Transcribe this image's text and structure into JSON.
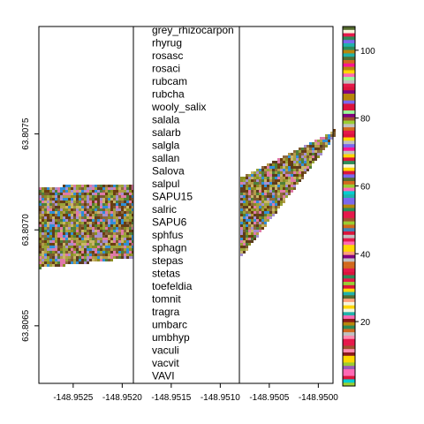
{
  "chart_data": {
    "type": "heatmap",
    "title": "",
    "xlabel": "",
    "ylabel": "",
    "x_ticks": [
      "-148.9525",
      "-148.9520",
      "-148.9515",
      "-148.9510",
      "-148.9505",
      "-148.9500"
    ],
    "y_ticks": [
      "63.8065",
      "63.8070",
      "63.8075"
    ],
    "xlim": [
      -148.95285,
      -148.94985
    ],
    "ylim": [
      63.8062,
      63.80806
    ],
    "colorbar": {
      "ticks": [
        20,
        40,
        60,
        80,
        100
      ],
      "range": [
        1,
        107
      ]
    },
    "legend_entries": [
      "grey_rhizocarpon",
      "rhyrug",
      "rosasc",
      "rosaci",
      "rubcam",
      "rubcha",
      "wooly_salix",
      "salala",
      "salarb",
      "salgla",
      "sallan",
      "Salova",
      "salpul",
      "SAPU15",
      "salric",
      "SAPU6",
      "sphfus",
      "sphagn",
      "stepas",
      "stetas",
      "toefeldia",
      "tomnit",
      "tragra",
      "umbarc",
      "umbhyp",
      "vaculi",
      "vacvit",
      "VAVI"
    ],
    "palette": [
      "#6b3d10",
      "#8b8f22",
      "#9aa43a",
      "#7a5a2e",
      "#b49b4a",
      "#4f7f3a",
      "#8d6a3f",
      "#a58fd0",
      "#2f8fd8",
      "#e07aa8",
      "#5c3c1e",
      "#c9b56a"
    ],
    "colorbar_palette": [
      "#e6194b",
      "#ff8ab0",
      "#9b59b6",
      "#8b1a1a",
      "#c0c0c0",
      "#556b2f",
      "#f5f5dc",
      "#ffd700",
      "#2e8b57",
      "#ff69b4",
      "#8b4513",
      "#20b2aa",
      "#dc143c",
      "#7b68ee",
      "#ffa07a",
      "#b8860b",
      "#4682b4",
      "#d2691e",
      "#9acd32",
      "#ff1493",
      "#00ced1",
      "#a0522d",
      "#98fb98",
      "#800080"
    ]
  }
}
